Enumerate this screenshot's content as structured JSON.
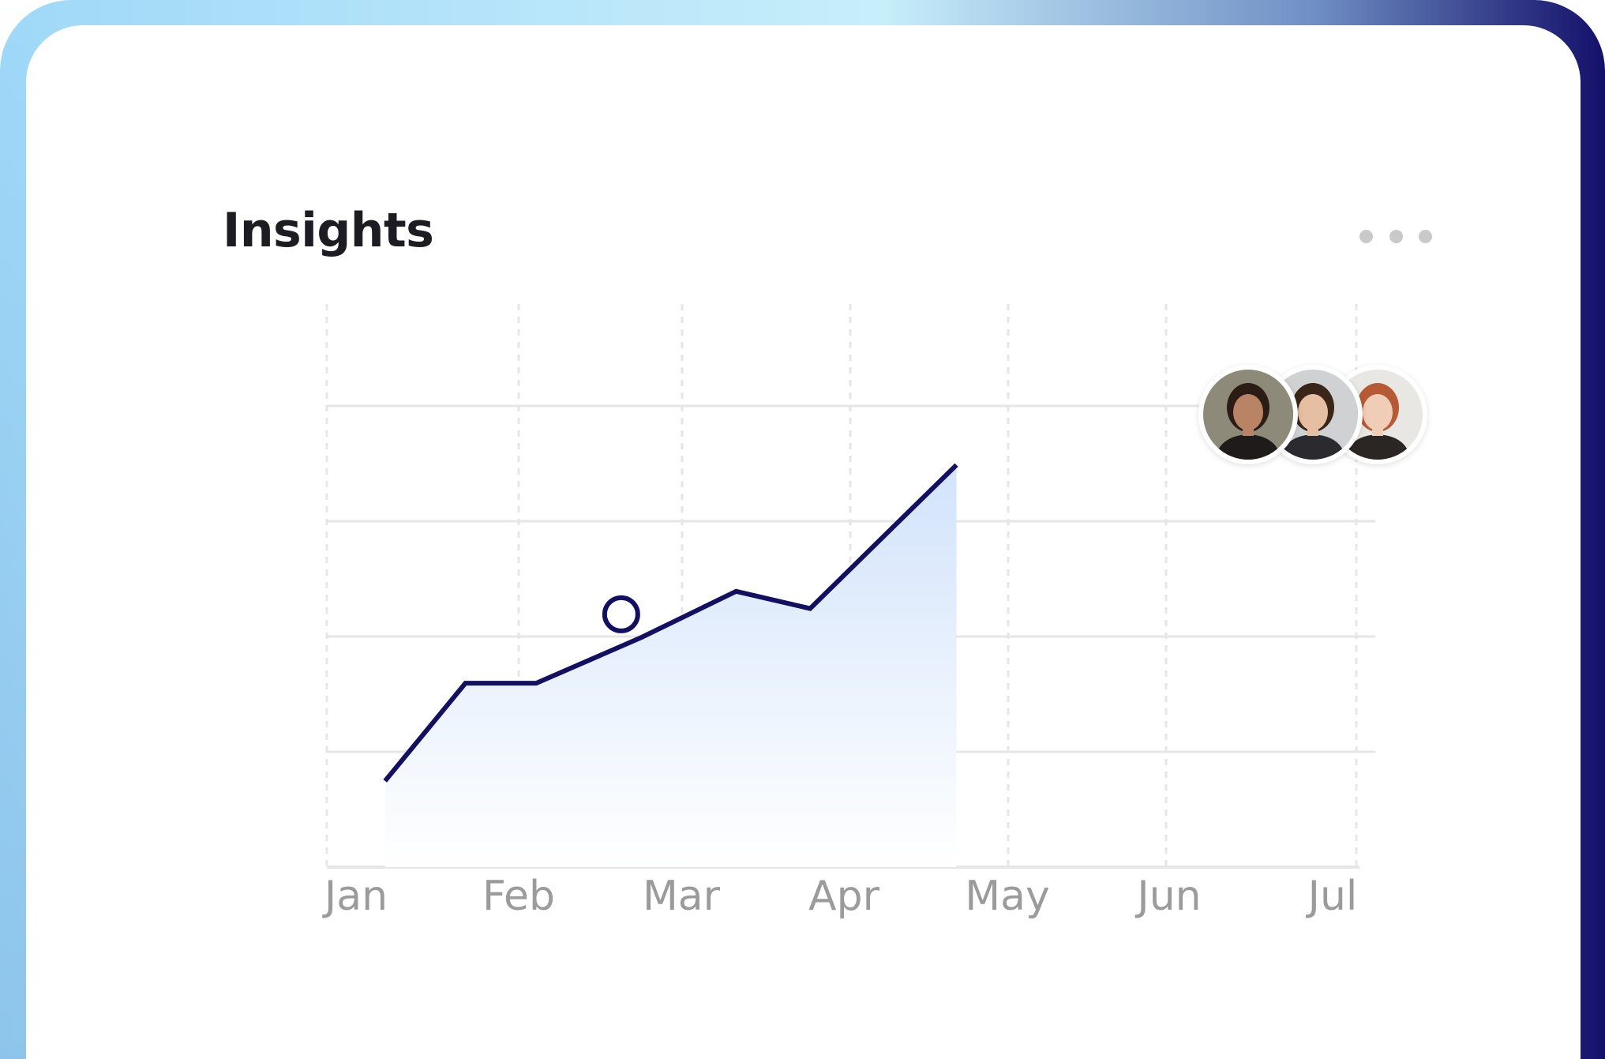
{
  "widget": {
    "title": "Insights",
    "menu_icon": "more-horizontal-icon"
  },
  "avatars": [
    {
      "name": "avatar-woman-dark-hair",
      "skin": "#b98466",
      "hair": "#2b1c16",
      "shirt": "#1f1b1a",
      "bg": "#8d8a79"
    },
    {
      "name": "avatar-man",
      "skin": "#e6bea2",
      "hair": "#3a2519",
      "shirt": "#2b2b2f",
      "bg": "#cfd1d3"
    },
    {
      "name": "avatar-woman-red-hair",
      "skin": "#f0cdb7",
      "hair": "#b65a35",
      "shirt": "#2b2523",
      "bg": "#e9e7e3"
    }
  ],
  "colors": {
    "line": "#13105f",
    "area_top": "#d2e3fb",
    "area_bottom": "#ffffff",
    "grid": "#e6e6e6",
    "axis_text": "#9b9b9b",
    "cursor_top": "#a9dcf4",
    "cursor_bottom": "#13105f"
  },
  "chart_data": {
    "type": "line",
    "categories": [
      "Jan",
      "Feb",
      "Mar",
      "Apr",
      "May",
      "Jun",
      "Jul"
    ],
    "x": [
      0.37,
      0.88,
      1.33,
      2.0,
      2.6,
      3.07,
      4.0
    ],
    "y": [
      0.75,
      1.6,
      1.6,
      2.0,
      2.4,
      2.25,
      3.5
    ],
    "ylim": [
      0,
      4.9
    ],
    "xlim": [
      0,
      6.55
    ],
    "grid": {
      "horizontal": true,
      "vertical_dashed": true
    },
    "highlight": {
      "x": 1.87,
      "y": 2.2,
      "label": "Mar"
    },
    "legend": "none"
  }
}
